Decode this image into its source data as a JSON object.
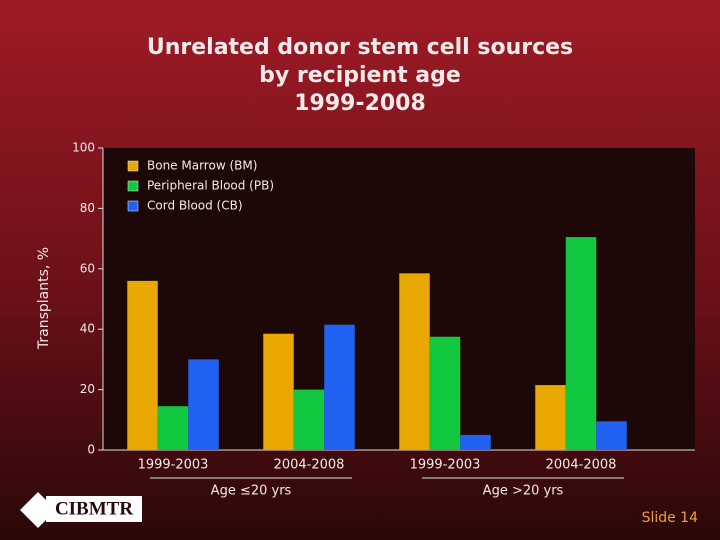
{
  "chart_data": {
    "type": "bar",
    "title_lines": [
      "Unrelated donor stem cell sources",
      "by recipient age",
      "1999-2008"
    ],
    "ylabel": "Transplants, %",
    "categories": [
      "1999-2003",
      "2004-2008",
      "1999-2003",
      "2004-2008"
    ],
    "groups": [
      "Age ≤20 yrs",
      "Age >20 yrs"
    ],
    "series": [
      {
        "name": "Bone Marrow (BM)",
        "color": "#e8a800",
        "values": [
          56,
          38.5,
          58.5,
          21.5
        ]
      },
      {
        "name": "Peripheral Blood (PB)",
        "color": "#12c83e",
        "values": [
          14.5,
          20,
          37.5,
          70.5
        ]
      },
      {
        "name": "Cord Blood (CB)",
        "color": "#2262f2",
        "values": [
          30,
          41.5,
          5,
          9.5
        ]
      }
    ],
    "ylim": [
      0,
      100
    ],
    "yticks": [
      0,
      20,
      40,
      60,
      80,
      100
    ],
    "legend": "top-left"
  },
  "footer": {
    "logo": "CIBMTR",
    "slide": "Slide 14"
  }
}
